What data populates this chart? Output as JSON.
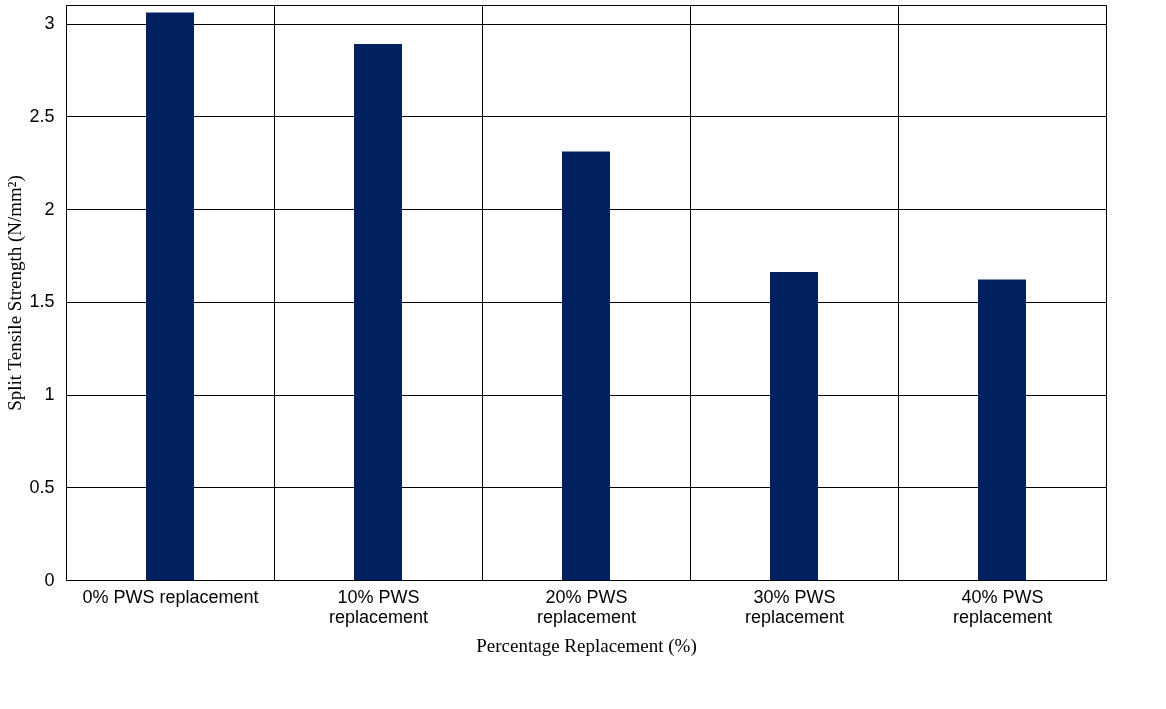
{
  "chart_data": {
    "type": "bar",
    "xlabel": "Percentage Replacement (%)",
    "ylabel": "Split Tensile Strength (N/mm²)",
    "categories": [
      "0% PWS replacement",
      "10% PWS replacement",
      "20% PWS replacement",
      "30% PWS replacement",
      "40% PWS replacement"
    ],
    "values": [
      3.06,
      2.89,
      2.31,
      1.66,
      1.62
    ],
    "color": "#002060",
    "ylim": [
      0,
      3.1
    ],
    "yticks": [
      0,
      0.5,
      1,
      1.5,
      2,
      2.5,
      3
    ],
    "grid": true
  }
}
